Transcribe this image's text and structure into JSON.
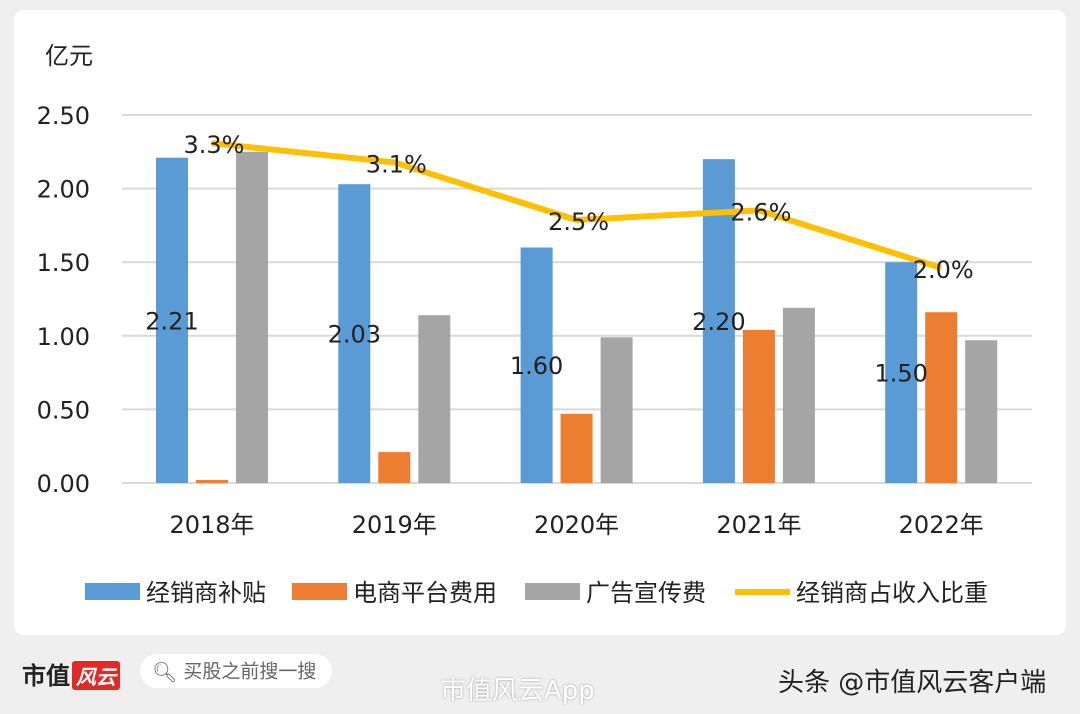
{
  "chart_data": {
    "type": "bar+line",
    "ylabel": "亿元",
    "ylim": [
      0,
      2.5
    ],
    "yticks": [
      "0.00",
      "0.50",
      "1.00",
      "1.50",
      "2.00",
      "2.50"
    ],
    "grid": true,
    "legend_position": "bottom",
    "categories": [
      "2018年",
      "2019年",
      "2020年",
      "2021年",
      "2022年"
    ],
    "series": [
      {
        "name": "经销商补贴",
        "type": "bar",
        "color": "#5b9bd5",
        "values": [
          2.21,
          2.03,
          1.6,
          2.2,
          1.5
        ],
        "labels": [
          "2.21",
          "2.03",
          "1.60",
          "2.20",
          "1.50"
        ]
      },
      {
        "name": "电商平台费用",
        "type": "bar",
        "color": "#ed7d31",
        "values": [
          0.02,
          0.21,
          0.47,
          1.04,
          1.16
        ]
      },
      {
        "name": "广告宣传费",
        "type": "bar",
        "color": "#a5a5a5",
        "values": [
          2.25,
          1.14,
          0.99,
          1.19,
          0.97
        ]
      },
      {
        "name": "经销商占收入比重",
        "type": "line",
        "axis": "secondary",
        "color": "#ffc000",
        "values": [
          3.3,
          3.1,
          2.5,
          2.6,
          2.0
        ],
        "labels": [
          "3.3%",
          "3.1%",
          "2.5%",
          "2.6%",
          "2.0%"
        ]
      }
    ]
  },
  "footer": {
    "brand": "市值",
    "brand_logo": "风云",
    "search_placeholder": "买股之前搜一搜",
    "weibo_watermark": "市值风云App",
    "toutiao_credit": "头条 @市值风云客户端"
  }
}
